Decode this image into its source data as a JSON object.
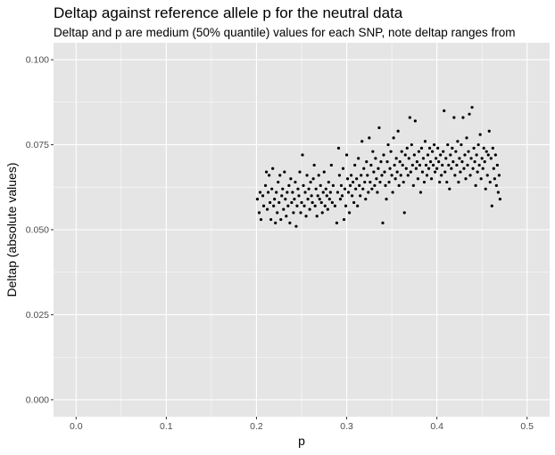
{
  "chart_data": {
    "type": "scatter",
    "title": "Deltap against reference allele p for the neutral data",
    "subtitle": "Deltap and p are medium (50% quantile) values for each SNP, note deltap ranges from",
    "xlabel": "p",
    "ylabel": "Deltap (absolute values)",
    "xlim": [
      -0.025,
      0.525
    ],
    "ylim": [
      -0.005,
      0.105
    ],
    "x_ticks": [
      "0.0",
      "0.1",
      "0.2",
      "0.3",
      "0.4",
      "0.5"
    ],
    "y_ticks": [
      "0.000",
      "0.025",
      "0.050",
      "0.075",
      "0.100"
    ],
    "x_tick_values": [
      0.0,
      0.1,
      0.2,
      0.3,
      0.4,
      0.5
    ],
    "y_tick_values": [
      0.0,
      0.025,
      0.05,
      0.075,
      0.1
    ],
    "grid": true,
    "colors": {
      "panel": "#e5e5e5",
      "grid": "#ffffff",
      "point": "#000000"
    },
    "series": [
      {
        "points": [
          [
            0.201,
            0.059
          ],
          [
            0.203,
            0.055
          ],
          [
            0.204,
            0.061
          ],
          [
            0.205,
            0.053
          ],
          [
            0.207,
            0.06
          ],
          [
            0.208,
            0.057
          ],
          [
            0.21,
            0.063
          ],
          [
            0.211,
            0.067
          ],
          [
            0.212,
            0.056
          ],
          [
            0.213,
            0.061
          ],
          [
            0.214,
            0.066
          ],
          [
            0.215,
            0.058
          ],
          [
            0.216,
            0.053
          ],
          [
            0.217,
            0.062
          ],
          [
            0.218,
            0.068
          ],
          [
            0.219,
            0.057
          ],
          [
            0.22,
            0.059
          ],
          [
            0.221,
            0.052
          ],
          [
            0.222,
            0.061
          ],
          [
            0.223,
            0.055
          ],
          [
            0.224,
            0.064
          ],
          [
            0.225,
            0.058
          ],
          [
            0.226,
            0.066
          ],
          [
            0.227,
            0.053
          ],
          [
            0.228,
            0.06
          ],
          [
            0.229,
            0.062
          ],
          [
            0.23,
            0.056
          ],
          [
            0.231,
            0.067
          ],
          [
            0.232,
            0.059
          ],
          [
            0.233,
            0.054
          ],
          [
            0.234,
            0.061
          ],
          [
            0.235,
            0.057
          ],
          [
            0.236,
            0.063
          ],
          [
            0.237,
            0.052
          ],
          [
            0.238,
            0.065
          ],
          [
            0.239,
            0.058
          ],
          [
            0.24,
            0.061
          ],
          [
            0.241,
            0.055
          ],
          [
            0.242,
            0.059
          ],
          [
            0.243,
            0.064
          ],
          [
            0.244,
            0.051
          ],
          [
            0.245,
            0.057
          ],
          [
            0.246,
            0.062
          ],
          [
            0.247,
            0.06
          ],
          [
            0.248,
            0.067
          ],
          [
            0.249,
            0.055
          ],
          [
            0.25,
            0.058
          ],
          [
            0.251,
            0.072
          ],
          [
            0.252,
            0.063
          ],
          [
            0.253,
            0.057
          ],
          [
            0.254,
            0.061
          ],
          [
            0.255,
            0.054
          ],
          [
            0.256,
            0.066
          ],
          [
            0.257,
            0.059
          ],
          [
            0.258,
            0.062
          ],
          [
            0.259,
            0.056
          ],
          [
            0.26,
            0.064
          ],
          [
            0.261,
            0.06
          ],
          [
            0.262,
            0.058
          ],
          [
            0.263,
            0.065
          ],
          [
            0.264,
            0.069
          ],
          [
            0.265,
            0.057
          ],
          [
            0.266,
            0.062
          ],
          [
            0.267,
            0.054
          ],
          [
            0.268,
            0.06
          ],
          [
            0.269,
            0.066
          ],
          [
            0.27,
            0.059
          ],
          [
            0.271,
            0.063
          ],
          [
            0.272,
            0.058
          ],
          [
            0.273,
            0.055
          ],
          [
            0.274,
            0.061
          ],
          [
            0.275,
            0.067
          ],
          [
            0.276,
            0.057
          ],
          [
            0.277,
            0.062
          ],
          [
            0.278,
            0.06
          ],
          [
            0.279,
            0.056
          ],
          [
            0.28,
            0.064
          ],
          [
            0.281,
            0.059
          ],
          [
            0.282,
            0.061
          ],
          [
            0.283,
            0.069
          ],
          [
            0.284,
            0.058
          ],
          [
            0.285,
            0.063
          ],
          [
            0.287,
            0.057
          ],
          [
            0.289,
            0.052
          ],
          [
            0.29,
            0.061
          ],
          [
            0.291,
            0.074
          ],
          [
            0.292,
            0.066
          ],
          [
            0.293,
            0.059
          ],
          [
            0.294,
            0.063
          ],
          [
            0.295,
            0.06
          ],
          [
            0.296,
            0.068
          ],
          [
            0.297,
            0.053
          ],
          [
            0.298,
            0.062
          ],
          [
            0.299,
            0.057
          ],
          [
            0.3,
            0.072
          ],
          [
            0.301,
            0.065
          ],
          [
            0.302,
            0.061
          ],
          [
            0.303,
            0.055
          ],
          [
            0.304,
            0.063
          ],
          [
            0.305,
            0.066
          ],
          [
            0.306,
            0.06
          ],
          [
            0.307,
            0.064
          ],
          [
            0.308,
            0.058
          ],
          [
            0.309,
            0.069
          ],
          [
            0.31,
            0.062
          ],
          [
            0.311,
            0.065
          ],
          [
            0.312,
            0.057
          ],
          [
            0.313,
            0.071
          ],
          [
            0.314,
            0.063
          ],
          [
            0.315,
            0.06
          ],
          [
            0.316,
            0.066
          ],
          [
            0.317,
            0.076
          ],
          [
            0.318,
            0.062
          ],
          [
            0.319,
            0.068
          ],
          [
            0.32,
            0.064
          ],
          [
            0.321,
            0.059
          ],
          [
            0.322,
            0.07
          ],
          [
            0.323,
            0.066
          ],
          [
            0.324,
            0.061
          ],
          [
            0.325,
            0.077
          ],
          [
            0.326,
            0.064
          ],
          [
            0.327,
            0.069
          ],
          [
            0.328,
            0.062
          ],
          [
            0.329,
            0.073
          ],
          [
            0.33,
            0.067
          ],
          [
            0.331,
            0.063
          ],
          [
            0.332,
            0.071
          ],
          [
            0.333,
            0.065
          ],
          [
            0.334,
            0.061
          ],
          [
            0.335,
            0.068
          ],
          [
            0.336,
            0.08
          ],
          [
            0.337,
            0.064
          ],
          [
            0.338,
            0.07
          ],
          [
            0.339,
            0.066
          ],
          [
            0.34,
            0.052
          ],
          [
            0.341,
            0.072
          ],
          [
            0.342,
            0.067
          ],
          [
            0.343,
            0.063
          ],
          [
            0.344,
            0.059
          ],
          [
            0.345,
            0.07
          ],
          [
            0.346,
            0.075
          ],
          [
            0.347,
            0.064
          ],
          [
            0.348,
            0.068
          ],
          [
            0.349,
            0.073
          ],
          [
            0.35,
            0.066
          ],
          [
            0.351,
            0.061
          ],
          [
            0.352,
            0.077
          ],
          [
            0.353,
            0.069
          ],
          [
            0.354,
            0.065
          ],
          [
            0.355,
            0.071
          ],
          [
            0.356,
            0.067
          ],
          [
            0.357,
            0.079
          ],
          [
            0.358,
            0.063
          ],
          [
            0.359,
            0.07
          ],
          [
            0.36,
            0.066
          ],
          [
            0.361,
            0.073
          ],
          [
            0.362,
            0.069
          ],
          [
            0.363,
            0.064
          ],
          [
            0.364,
            0.055
          ],
          [
            0.365,
            0.072
          ],
          [
            0.366,
            0.068
          ],
          [
            0.367,
            0.074
          ],
          [
            0.368,
            0.066
          ],
          [
            0.369,
            0.071
          ],
          [
            0.37,
            0.083
          ],
          [
            0.371,
            0.067
          ],
          [
            0.372,
            0.075
          ],
          [
            0.373,
            0.069
          ],
          [
            0.374,
            0.063
          ],
          [
            0.375,
            0.072
          ],
          [
            0.376,
            0.082
          ],
          [
            0.377,
            0.068
          ],
          [
            0.378,
            0.07
          ],
          [
            0.379,
            0.065
          ],
          [
            0.38,
            0.073
          ],
          [
            0.381,
            0.069
          ],
          [
            0.382,
            0.061
          ],
          [
            0.383,
            0.074
          ],
          [
            0.384,
            0.067
          ],
          [
            0.385,
            0.071
          ],
          [
            0.386,
            0.064
          ],
          [
            0.387,
            0.076
          ],
          [
            0.388,
            0.069
          ],
          [
            0.389,
            0.066
          ],
          [
            0.39,
            0.072
          ],
          [
            0.391,
            0.068
          ],
          [
            0.392,
            0.074
          ],
          [
            0.393,
            0.07
          ],
          [
            0.394,
            0.065
          ],
          [
            0.395,
            0.073
          ],
          [
            0.396,
            0.069
          ],
          [
            0.397,
            0.075
          ],
          [
            0.398,
            0.067
          ],
          [
            0.399,
            0.071
          ],
          [
            0.4,
            0.068
          ],
          [
            0.401,
            0.074
          ],
          [
            0.402,
            0.07
          ],
          [
            0.403,
            0.064
          ],
          [
            0.404,
            0.072
          ],
          [
            0.405,
            0.066
          ],
          [
            0.406,
            0.069
          ],
          [
            0.407,
            0.073
          ],
          [
            0.408,
            0.085
          ],
          [
            0.409,
            0.067
          ],
          [
            0.41,
            0.071
          ],
          [
            0.411,
            0.064
          ],
          [
            0.412,
            0.075
          ],
          [
            0.413,
            0.069
          ],
          [
            0.414,
            0.062
          ],
          [
            0.415,
            0.072
          ],
          [
            0.416,
            0.068
          ],
          [
            0.417,
            0.074
          ],
          [
            0.418,
            0.07
          ],
          [
            0.419,
            0.083
          ],
          [
            0.42,
            0.066
          ],
          [
            0.421,
            0.073
          ],
          [
            0.422,
            0.069
          ],
          [
            0.423,
            0.076
          ],
          [
            0.424,
            0.064
          ],
          [
            0.425,
            0.071
          ],
          [
            0.426,
            0.067
          ],
          [
            0.427,
            0.075
          ],
          [
            0.428,
            0.07
          ],
          [
            0.429,
            0.083
          ],
          [
            0.43,
            0.068
          ],
          [
            0.431,
            0.072
          ],
          [
            0.432,
            0.065
          ],
          [
            0.433,
            0.077
          ],
          [
            0.434,
            0.069
          ],
          [
            0.435,
            0.073
          ],
          [
            0.436,
            0.084
          ],
          [
            0.437,
            0.066
          ],
          [
            0.438,
            0.071
          ],
          [
            0.439,
            0.086
          ],
          [
            0.44,
            0.068
          ],
          [
            0.441,
            0.074
          ],
          [
            0.442,
            0.07
          ],
          [
            0.443,
            0.063
          ],
          [
            0.444,
            0.072
          ],
          [
            0.445,
            0.067
          ],
          [
            0.446,
            0.075
          ],
          [
            0.447,
            0.069
          ],
          [
            0.448,
            0.078
          ],
          [
            0.449,
            0.065
          ],
          [
            0.45,
            0.071
          ],
          [
            0.451,
            0.068
          ],
          [
            0.452,
            0.074
          ],
          [
            0.453,
            0.07
          ],
          [
            0.454,
            0.062
          ],
          [
            0.455,
            0.073
          ],
          [
            0.456,
            0.066
          ],
          [
            0.457,
            0.072
          ],
          [
            0.458,
            0.079
          ],
          [
            0.459,
            0.064
          ],
          [
            0.46,
            0.071
          ],
          [
            0.461,
            0.057
          ],
          [
            0.462,
            0.074
          ],
          [
            0.463,
            0.068
          ],
          [
            0.464,
            0.065
          ],
          [
            0.465,
            0.072
          ],
          [
            0.466,
            0.063
          ],
          [
            0.467,
            0.069
          ],
          [
            0.468,
            0.061
          ],
          [
            0.469,
            0.066
          ],
          [
            0.47,
            0.059
          ]
        ]
      }
    ]
  }
}
